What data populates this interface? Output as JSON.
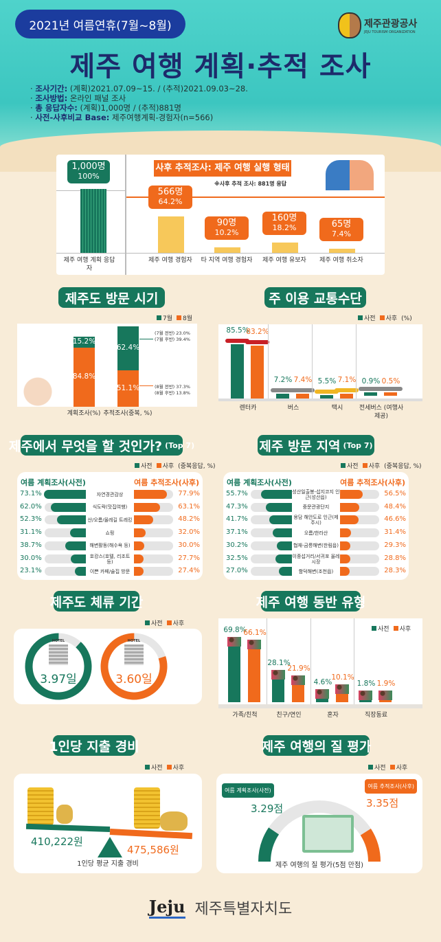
{
  "colors": {
    "green": "#17775c",
    "orange": "#f06a1c",
    "yellow": "#f7c85a",
    "sea": "#3cc6c0",
    "navy": "#1d2a6b"
  },
  "header": {
    "period_pill": "2021년 여름연휴(7월~8월)",
    "title": "제주 여행 계획·추적 조사",
    "logo_name": "제주관광공사",
    "logo_sub": "JEJU TOURISM ORGANIZATION",
    "info": [
      {
        "label": "조사기간:",
        "text": "(계획)2021.07.09~15. / (추적)2021.09.03~28."
      },
      {
        "label": "조사방법:",
        "text": "온라인 패널 조사"
      },
      {
        "label": "총 응답자수:",
        "text": "(계획)1,000명 / (추적)881명"
      },
      {
        "label": "사전-사후비교 Base:",
        "text": "제주여행계획-경험자(n=566)"
      }
    ]
  },
  "legend": {
    "pre": "사전",
    "post": "사후",
    "jul": "7월",
    "aug": "8월",
    "pct": "(%)",
    "multi_pct": "(중복응답, %)"
  },
  "chart_data": [
    {
      "type": "bar",
      "id": "execution",
      "title": "사후 추적조사: 제주 여행 실행 형태",
      "note": "※사후 추적 조사: 881명 응답",
      "categories": [
        "제주 여행 계획 응답자",
        "제주 여행 경험자",
        "타 지역 여행 경험자",
        "제주 여행 유보자",
        "제주 여행 취소자"
      ],
      "counts": [
        "1,000명",
        "566명",
        "90명",
        "160명",
        "65명"
      ],
      "values": [
        1000,
        566,
        90,
        160,
        65
      ],
      "percents": [
        "100%",
        "64.2%",
        "10.2%",
        "18.2%",
        "7.4%"
      ]
    },
    {
      "type": "bar",
      "stacked": true,
      "id": "visit_timing",
      "title": "제주도 방문 시기",
      "categories": [
        "계획조사(%)",
        "추적조사(중복, %)"
      ],
      "series": [
        {
          "name": "7월",
          "values": [
            15.2,
            62.4
          ],
          "labels": [
            "15.2%",
            "62.4%"
          ]
        },
        {
          "name": "8월",
          "values": [
            84.8,
            51.1
          ],
          "labels": [
            "84.8%",
            "51.1%"
          ]
        }
      ],
      "annotations": [
        "(7월 전반) 23.0%",
        "(7월 후반) 39.4%",
        "(8월 전반) 37.3%",
        "(8월 후반) 13.8%"
      ]
    },
    {
      "type": "bar",
      "id": "transport",
      "title": "주 이용 교통수단",
      "categories": [
        "렌터카",
        "버스",
        "택시",
        "전세버스 (여행사제공)"
      ],
      "series": [
        {
          "name": "사전",
          "values": [
            85.5,
            7.2,
            5.5,
            0.9
          ],
          "labels": [
            "85.5%",
            "7.2%",
            "5.5%",
            "0.9%"
          ]
        },
        {
          "name": "사후",
          "values": [
            83.2,
            7.4,
            7.1,
            0.5
          ],
          "labels": [
            "83.2%",
            "7.4%",
            "7.1%",
            "0.5%"
          ]
        }
      ]
    },
    {
      "type": "bar",
      "orientation": "horizontal",
      "id": "activities",
      "title": "제주에서 무엇을 할 것인가?",
      "title_suffix": "(Top 7)",
      "left_title": "여름 계획조사(사전)",
      "right_title": "여름 추적조사(사후)",
      "categories": [
        "자연경관감상",
        "식도락(맛집여행)",
        "산/오름/올레길 트레킹",
        "쇼핑",
        "해변활동(해수욕 등)",
        "호캉스(호텔, 리조트 등)",
        "이쁜 카페/술집 방문"
      ],
      "series": [
        {
          "name": "사전",
          "values": [
            73.1,
            62.0,
            52.3,
            31.1,
            38.7,
            30.0,
            23.1
          ],
          "labels": [
            "73.1%",
            "62.0%",
            "52.3%",
            "31.1%",
            "38.7%",
            "30.0%",
            "23.1%"
          ]
        },
        {
          "name": "사후",
          "values": [
            77.9,
            63.1,
            48.2,
            32.0,
            30.0,
            27.7,
            27.4
          ],
          "labels": [
            "77.9%",
            "63.1%",
            "48.2%",
            "32.0%",
            "30.0%",
            "27.7%",
            "27.4%"
          ]
        }
      ]
    },
    {
      "type": "bar",
      "orientation": "horizontal",
      "id": "regions",
      "title": "제주 방문 지역",
      "title_suffix": "(Top 7)",
      "left_title": "여름 계획조사(사전)",
      "right_title": "여름 추적조사(사후)",
      "categories": [
        "성산일출봉-섭지코지 인근(성산읍)",
        "중문관광단지",
        "용담 해안도로 인근(제주시)",
        "오름/한라산",
        "협재-금릉해변(한림읍)",
        "이중섭거리/서귀포 올레시장",
        "함덕해변(조천읍)"
      ],
      "series": [
        {
          "name": "사전",
          "values": [
            55.7,
            47.3,
            41.7,
            37.1,
            30.2,
            32.5,
            27.0
          ],
          "labels": [
            "55.7%",
            "47.3%",
            "41.7%",
            "37.1%",
            "30.2%",
            "32.5%",
            "27.0%"
          ]
        },
        {
          "name": "사후",
          "values": [
            56.5,
            48.4,
            46.6,
            31.4,
            29.3,
            28.8,
            28.3
          ],
          "labels": [
            "56.5%",
            "48.4%",
            "46.6%",
            "31.4%",
            "29.3%",
            "28.8%",
            "28.3%"
          ]
        }
      ]
    },
    {
      "type": "pie",
      "id": "stay",
      "title": "제주도 체류 기간",
      "series": [
        {
          "name": "사전",
          "value": 3.97,
          "label": "3.97일"
        },
        {
          "name": "사후",
          "value": 3.6,
          "label": "3.60일"
        }
      ],
      "hotel_text": "HOTEL"
    },
    {
      "type": "bar",
      "id": "companion",
      "title": "제주 여행 동반 유형",
      "categories": [
        "가족/친척",
        "친구/연인",
        "혼자",
        "직장동료"
      ],
      "series": [
        {
          "name": "사전",
          "values": [
            69.8,
            28.1,
            4.6,
            1.8
          ],
          "labels": [
            "69.8%",
            "28.1%",
            "4.6%",
            "1.8%"
          ]
        },
        {
          "name": "사후",
          "values": [
            66.1,
            21.9,
            10.1,
            1.9
          ],
          "labels": [
            "66.1%",
            "21.9%",
            "10.1%",
            "1.9%"
          ]
        }
      ]
    },
    {
      "type": "bar",
      "id": "spending",
      "title": "1인당 지출 경비",
      "caption": "1인당 평균 지출 경비",
      "series": [
        {
          "name": "사전",
          "value": 410222,
          "label": "410,222원"
        },
        {
          "name": "사후",
          "value": 475586,
          "label": "475,586원"
        }
      ]
    },
    {
      "type": "pie",
      "id": "quality",
      "title": "제주 여행의 질 평가",
      "caption": "제주 여행의 질 평가(5점 만점)",
      "max": 5,
      "series": [
        {
          "name": "여름 계획조사(사전)",
          "value": 3.29,
          "label": "3.29점"
        },
        {
          "name": "여름 추적조사(사후)",
          "value": 3.35,
          "label": "3.35점"
        }
      ]
    }
  ],
  "footer": {
    "logo": "Jeju",
    "org": "제주특별자치도"
  }
}
